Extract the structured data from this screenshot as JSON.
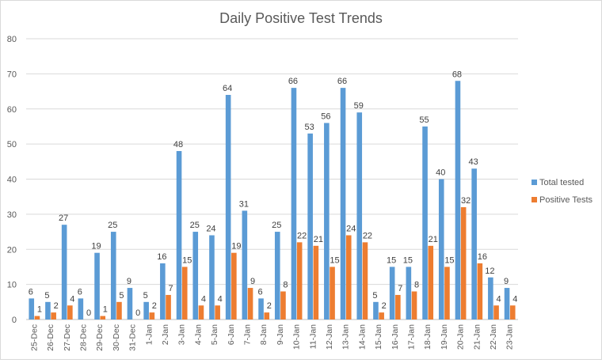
{
  "chart_data": {
    "type": "bar",
    "title": "Daily Positive Test Trends",
    "xlabel": "",
    "ylabel": "",
    "ylim": [
      0,
      80
    ],
    "y_ticks": [
      0,
      10,
      20,
      30,
      40,
      50,
      60,
      70,
      80
    ],
    "grid": true,
    "legend_position": "right",
    "categories": [
      "25-Dec",
      "26-Dec",
      "27-Dec",
      "28-Dec",
      "29-Dec",
      "30-Dec",
      "31-Dec",
      "1-Jan",
      "2-Jan",
      "3-Jan",
      "4-Jan",
      "5-Jan",
      "6-Jan",
      "7-Jan",
      "8-Jan",
      "9-Jan",
      "10-Jan",
      "11-Jan",
      "12-Jan",
      "13-Jan",
      "14-Jan",
      "15-Jan",
      "16-Jan",
      "17-Jan",
      "18-Jan",
      "19-Jan",
      "20-Jan",
      "21-Jan",
      "22-Jan",
      "23-Jan"
    ],
    "series": [
      {
        "name": "Total tested",
        "color": "#5b9bd5",
        "values": [
          6,
          5,
          27,
          6,
          19,
          25,
          9,
          5,
          16,
          48,
          25,
          24,
          64,
          31,
          6,
          25,
          66,
          53,
          56,
          66,
          59,
          5,
          15,
          15,
          55,
          40,
          68,
          43,
          12,
          9
        ]
      },
      {
        "name": "Positive Tests",
        "color": "#ed7d31",
        "values": [
          1,
          2,
          4,
          0,
          1,
          5,
          0,
          2,
          7,
          15,
          4,
          4,
          19,
          9,
          2,
          8,
          22,
          21,
          15,
          24,
          22,
          2,
          7,
          8,
          21,
          15,
          32,
          16,
          4,
          4
        ]
      }
    ]
  }
}
